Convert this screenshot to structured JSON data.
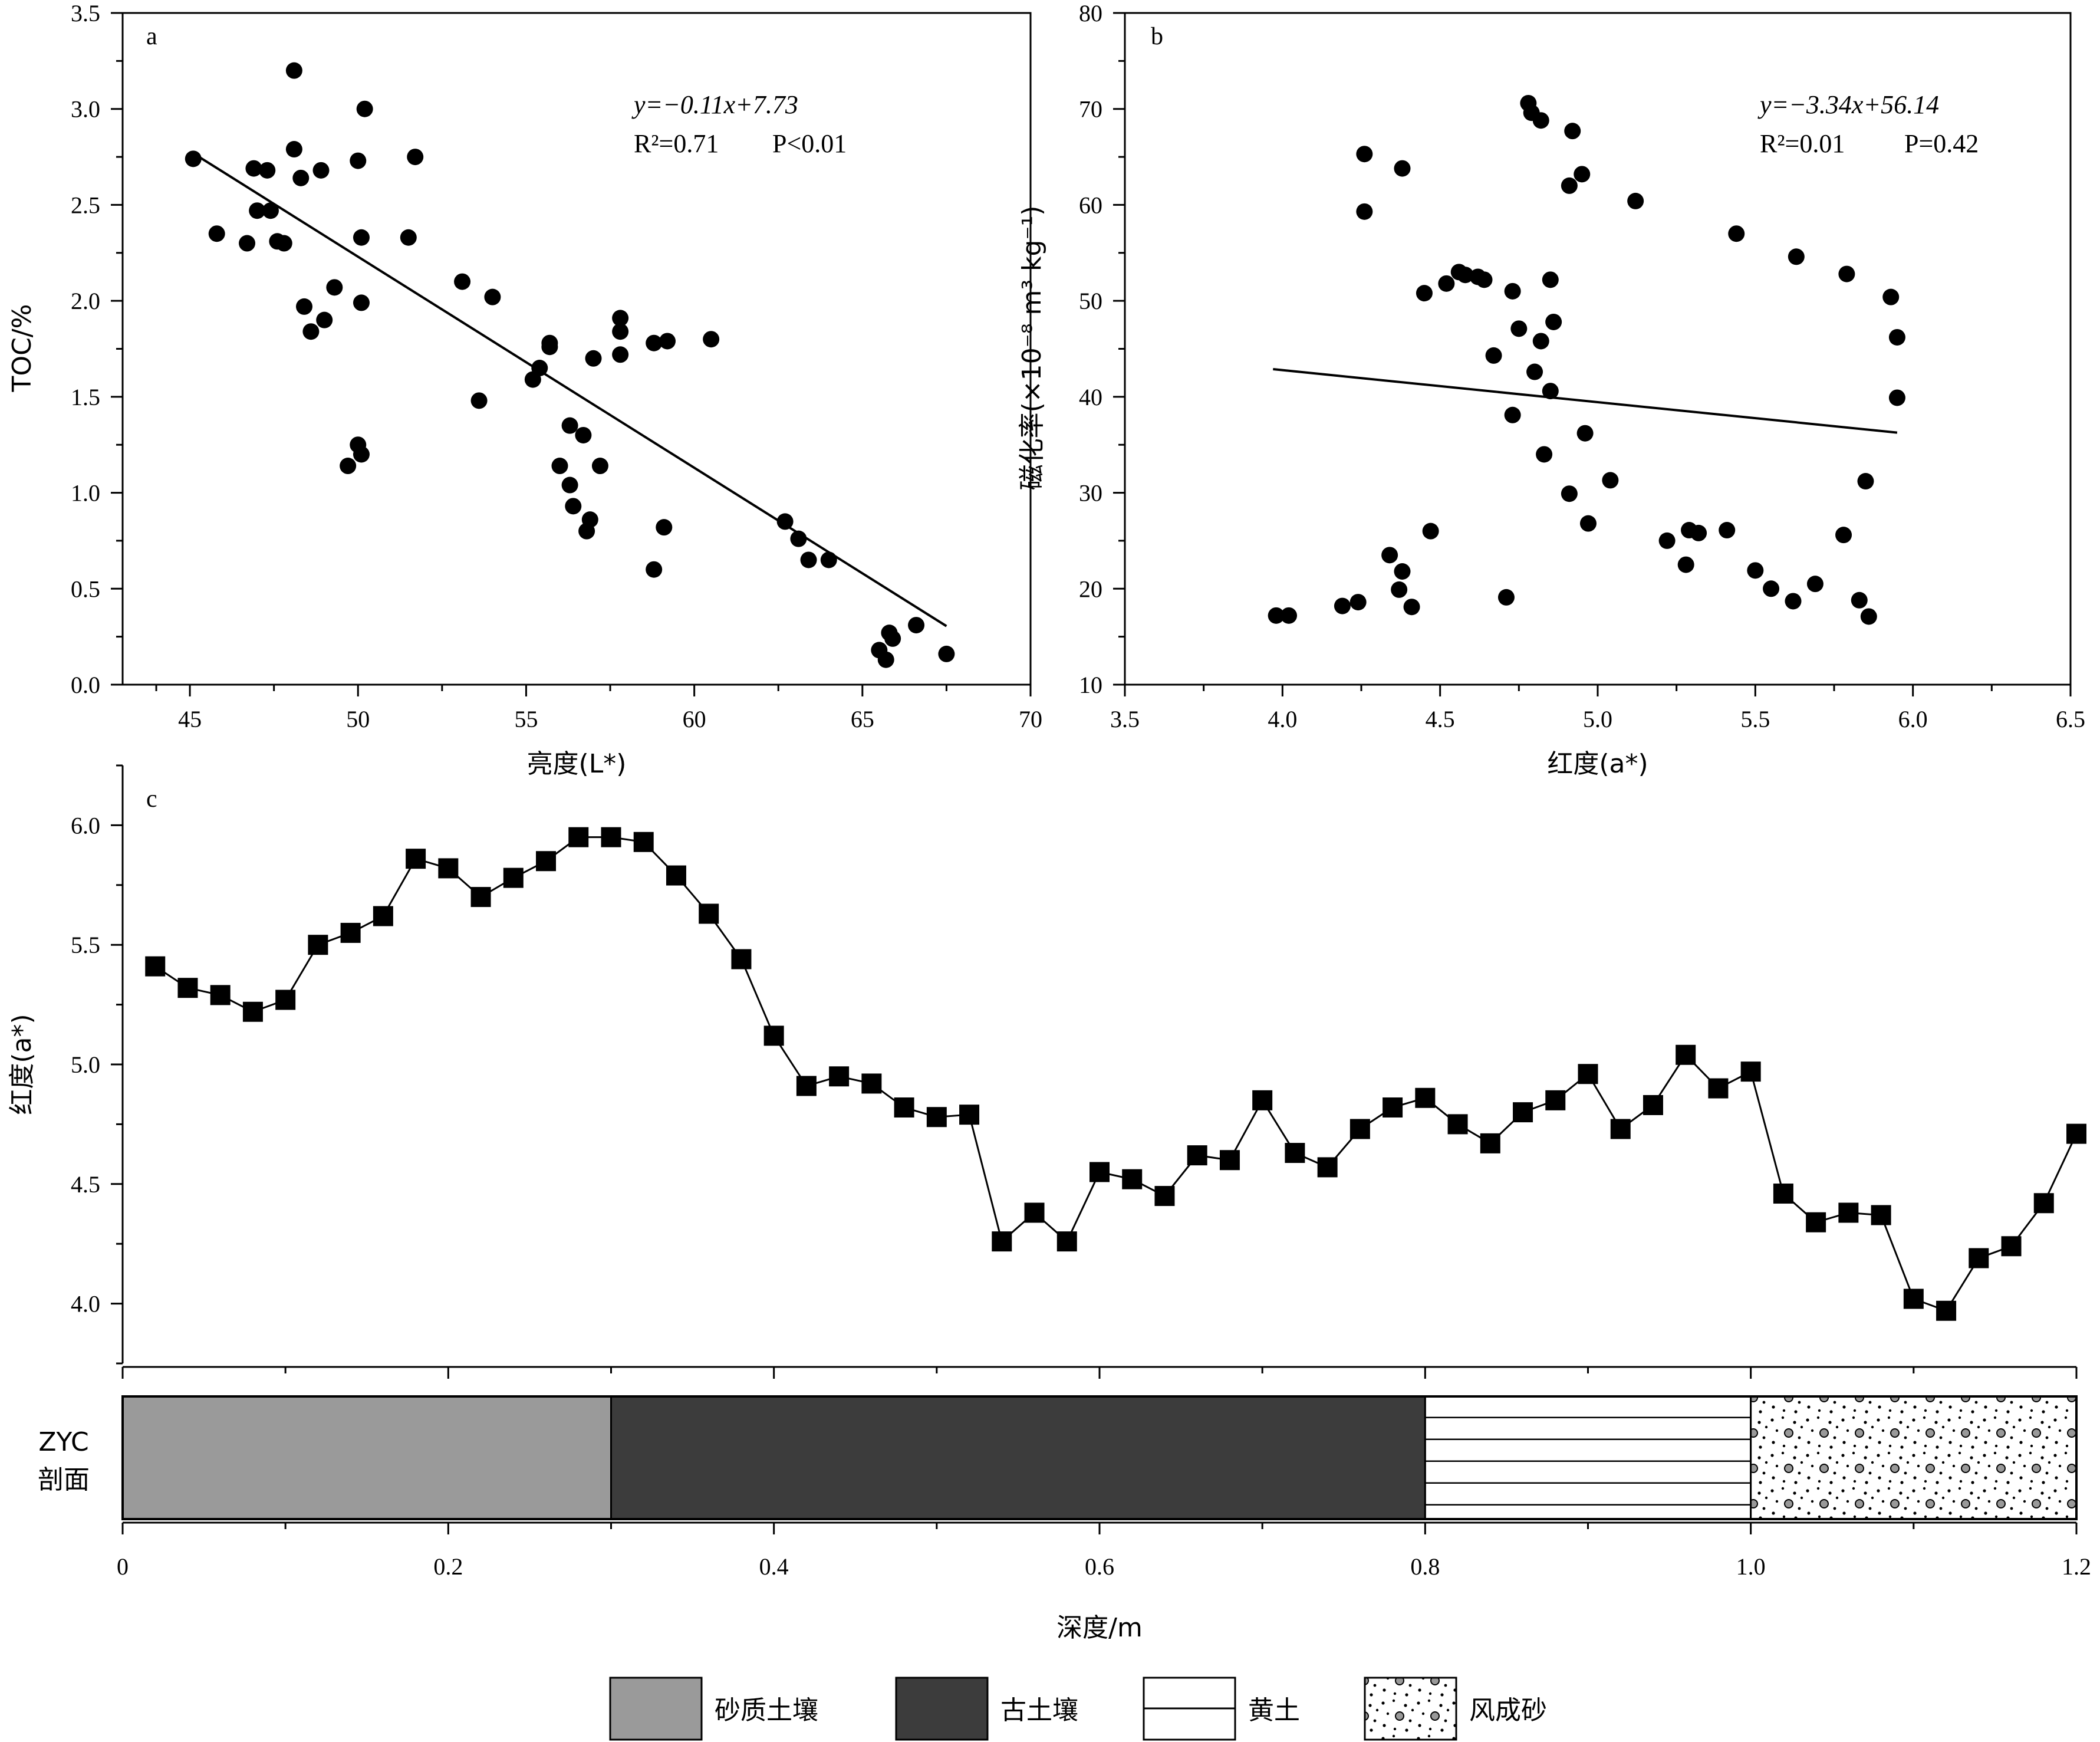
{
  "chart_data": [
    {
      "id": "a",
      "type": "scatter",
      "panel_label": "a",
      "xlabel": "亮度(L*)",
      "ylabel": "TOC/%",
      "xlim": [
        43,
        70
      ],
      "ylim": [
        0,
        3.5
      ],
      "xticks": [
        "45",
        "50",
        "55",
        "60",
        "65",
        "70"
      ],
      "yticks": [
        "0.0",
        "0.5",
        "1.0",
        "1.5",
        "2.0",
        "2.5",
        "3.0",
        "3.5"
      ],
      "equation": "y=−0.11x+7.73",
      "r2_text": "R²=0.71",
      "p_text": "P<0.01",
      "fit": {
        "slope": -0.11,
        "intercept": 7.73,
        "x_range": [
          45.1,
          67.5
        ]
      },
      "points": [
        [
          45.1,
          2.74
        ],
        [
          45.8,
          2.35
        ],
        [
          46.7,
          2.3
        ],
        [
          46.9,
          2.69
        ],
        [
          47.0,
          2.47
        ],
        [
          47.3,
          2.68
        ],
        [
          47.4,
          2.47
        ],
        [
          47.6,
          2.31
        ],
        [
          47.8,
          2.3
        ],
        [
          48.1,
          3.2
        ],
        [
          48.1,
          2.79
        ],
        [
          48.3,
          2.64
        ],
        [
          48.4,
          1.97
        ],
        [
          48.6,
          1.84
        ],
        [
          48.9,
          2.68
        ],
        [
          49.0,
          1.9
        ],
        [
          49.3,
          2.07
        ],
        [
          49.7,
          1.14
        ],
        [
          50.0,
          2.73
        ],
        [
          50.0,
          1.25
        ],
        [
          50.1,
          1.2
        ],
        [
          50.1,
          1.99
        ],
        [
          50.1,
          2.33
        ],
        [
          50.2,
          3.0
        ],
        [
          51.5,
          2.33
        ],
        [
          51.7,
          2.75
        ],
        [
          53.1,
          2.1
        ],
        [
          53.6,
          1.48
        ],
        [
          54.0,
          2.02
        ],
        [
          55.2,
          1.59
        ],
        [
          55.4,
          1.65
        ],
        [
          55.7,
          1.76
        ],
        [
          55.7,
          1.78
        ],
        [
          56.0,
          1.14
        ],
        [
          56.3,
          1.35
        ],
        [
          56.3,
          1.04
        ],
        [
          56.4,
          0.93
        ],
        [
          56.7,
          1.3
        ],
        [
          56.8,
          0.8
        ],
        [
          56.9,
          0.86
        ],
        [
          57.0,
          1.7
        ],
        [
          57.2,
          1.14
        ],
        [
          57.8,
          1.72
        ],
        [
          57.8,
          1.84
        ],
        [
          57.8,
          1.91
        ],
        [
          58.8,
          1.78
        ],
        [
          58.8,
          0.6
        ],
        [
          59.1,
          0.82
        ],
        [
          59.2,
          1.79
        ],
        [
          60.5,
          1.8
        ],
        [
          62.7,
          0.85
        ],
        [
          63.1,
          0.76
        ],
        [
          63.4,
          0.65
        ],
        [
          64.0,
          0.65
        ],
        [
          65.5,
          0.18
        ],
        [
          65.7,
          0.13
        ],
        [
          65.8,
          0.27
        ],
        [
          65.9,
          0.24
        ],
        [
          66.6,
          0.31
        ],
        [
          67.5,
          0.16
        ]
      ]
    },
    {
      "id": "b",
      "type": "scatter",
      "panel_label": "b",
      "xlabel": "红度(a*)",
      "ylabel": "磁化率(×10⁻⁸ m³ kg⁻¹)",
      "xlim": [
        3.5,
        6.5
      ],
      "ylim": [
        10,
        80
      ],
      "xticks": [
        "3.5",
        "4.0",
        "4.5",
        "5.0",
        "5.5",
        "6.0",
        "6.5"
      ],
      "yticks": [
        "10",
        "20",
        "30",
        "40",
        "50",
        "60",
        "70",
        "80"
      ],
      "equation": "y=−3.34x+56.14",
      "r2_text": "R²=0.01",
      "p_text": "P=0.42",
      "fit": {
        "slope": -3.34,
        "intercept": 56.14,
        "x_range": [
          3.97,
          5.95
        ]
      },
      "points": [
        [
          3.98,
          17.2
        ],
        [
          4.02,
          17.2
        ],
        [
          4.19,
          18.2
        ],
        [
          4.24,
          18.6
        ],
        [
          4.26,
          59.3
        ],
        [
          4.26,
          65.3
        ],
        [
          4.34,
          23.5
        ],
        [
          4.37,
          19.9
        ],
        [
          4.38,
          21.8
        ],
        [
          4.38,
          63.8
        ],
        [
          4.41,
          18.1
        ],
        [
          4.45,
          50.8
        ],
        [
          4.47,
          26.0
        ],
        [
          4.52,
          51.8
        ],
        [
          4.56,
          53.0
        ],
        [
          4.58,
          52.7
        ],
        [
          4.62,
          52.5
        ],
        [
          4.64,
          52.2
        ],
        [
          4.67,
          44.3
        ],
        [
          4.71,
          19.1
        ],
        [
          4.73,
          38.1
        ],
        [
          4.73,
          51.0
        ],
        [
          4.75,
          47.1
        ],
        [
          4.78,
          70.6
        ],
        [
          4.79,
          69.6
        ],
        [
          4.8,
          42.6
        ],
        [
          4.82,
          68.8
        ],
        [
          4.82,
          45.8
        ],
        [
          4.83,
          34.0
        ],
        [
          4.85,
          40.6
        ],
        [
          4.85,
          52.2
        ],
        [
          4.86,
          47.8
        ],
        [
          4.91,
          29.9
        ],
        [
          4.91,
          62.0
        ],
        [
          4.92,
          67.7
        ],
        [
          4.95,
          63.2
        ],
        [
          4.96,
          36.2
        ],
        [
          4.97,
          26.8
        ],
        [
          5.04,
          31.3
        ],
        [
          5.12,
          60.4
        ],
        [
          5.22,
          25.0
        ],
        [
          5.28,
          22.5
        ],
        [
          5.29,
          26.1
        ],
        [
          5.32,
          25.8
        ],
        [
          5.41,
          26.1
        ],
        [
          5.44,
          57.0
        ],
        [
          5.5,
          21.9
        ],
        [
          5.55,
          20.0
        ],
        [
          5.62,
          18.7
        ],
        [
          5.63,
          54.6
        ],
        [
          5.69,
          20.5
        ],
        [
          5.78,
          25.6
        ],
        [
          5.79,
          52.8
        ],
        [
          5.83,
          18.8
        ],
        [
          5.85,
          31.2
        ],
        [
          5.86,
          17.1
        ],
        [
          5.93,
          50.4
        ],
        [
          5.95,
          46.2
        ],
        [
          5.95,
          39.9
        ]
      ]
    },
    {
      "id": "c",
      "type": "line",
      "panel_label": "c",
      "xlabel": "深度/m",
      "ylabel": "红度(a*)",
      "xlim": [
        0,
        1.2
      ],
      "ylim": [
        3.75,
        6.25
      ],
      "xticks": [
        "0",
        "0.2",
        "0.4",
        "0.6",
        "0.8",
        "1.0",
        "1.2"
      ],
      "yticks": [
        "4.0",
        "4.5",
        "5.0",
        "5.5",
        "6.0"
      ],
      "x": [
        0.02,
        0.04,
        0.06,
        0.08,
        0.1,
        0.12,
        0.14,
        0.16,
        0.18,
        0.2,
        0.22,
        0.24,
        0.26,
        0.28,
        0.3,
        0.32,
        0.34,
        0.36,
        0.38,
        0.4,
        0.42,
        0.44,
        0.46,
        0.48,
        0.5,
        0.52,
        0.54,
        0.56,
        0.58,
        0.6,
        0.62,
        0.64,
        0.66,
        0.68,
        0.7,
        0.72,
        0.74,
        0.76,
        0.78,
        0.8,
        0.82,
        0.84,
        0.86,
        0.88,
        0.9,
        0.92,
        0.94,
        0.96,
        0.98,
        1.0,
        1.02,
        1.04,
        1.06,
        1.08,
        1.1,
        1.12,
        1.14,
        1.16,
        1.18,
        1.2
      ],
      "y": [
        5.41,
        5.32,
        5.29,
        5.22,
        5.27,
        5.5,
        5.55,
        5.62,
        5.86,
        5.82,
        5.7,
        5.78,
        5.85,
        5.95,
        5.95,
        5.93,
        5.79,
        5.63,
        5.44,
        5.12,
        4.91,
        4.95,
        4.92,
        4.82,
        4.78,
        4.79,
        4.26,
        4.38,
        4.26,
        4.55,
        4.52,
        4.45,
        4.62,
        4.6,
        4.85,
        4.63,
        4.57,
        4.73,
        4.82,
        4.86,
        4.75,
        4.67,
        4.8,
        4.85,
        4.96,
        4.73,
        4.83,
        5.04,
        4.9,
        4.97,
        4.46,
        4.34,
        4.38,
        4.37,
        4.02,
        3.97,
        4.19,
        4.24,
        4.42,
        4.71
      ]
    }
  ],
  "section": {
    "label_line1": "ZYC",
    "label_line2": "剖面",
    "layers": [
      {
        "name": "砂质土壤",
        "from": 0.0,
        "to": 0.3,
        "pattern": "solid",
        "color": "#9a9a9a"
      },
      {
        "name": "古土壤",
        "from": 0.3,
        "to": 0.8,
        "pattern": "solid",
        "color": "#3c3c3c"
      },
      {
        "name": "黄土",
        "from": 0.8,
        "to": 1.0,
        "pattern": "hlines",
        "color": "#ffffff"
      },
      {
        "name": "风成砂",
        "from": 1.0,
        "to": 1.2,
        "pattern": "dots",
        "color": "#ffffff"
      }
    ]
  },
  "legend": [
    {
      "label": "砂质土壤",
      "pattern": "solid",
      "color": "#9a9a9a"
    },
    {
      "label": "古土壤",
      "pattern": "solid",
      "color": "#3c3c3c"
    },
    {
      "label": "黄土",
      "pattern": "hline",
      "color": "#ffffff"
    },
    {
      "label": "风成砂",
      "pattern": "dots",
      "color": "#ffffff"
    }
  ]
}
